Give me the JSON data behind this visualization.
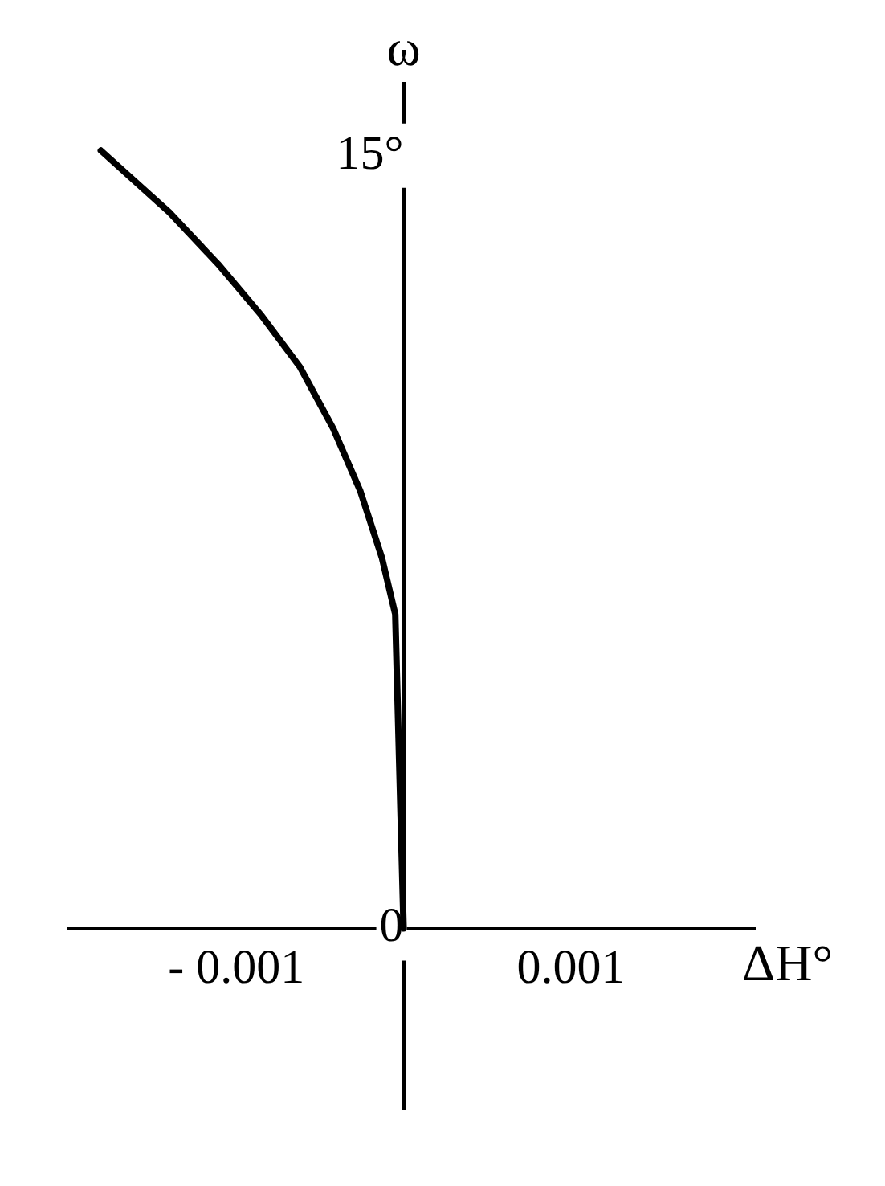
{
  "chart_data": {
    "type": "line",
    "xlabel": "ΔH°",
    "ylabel": "ω",
    "x": [
      -0.00181,
      -0.0014,
      -0.00111,
      -0.00085,
      -0.00062,
      -0.00042,
      -0.00026,
      -0.00013,
      -5e-05,
      0
    ],
    "series": [
      {
        "color": "#000000",
        "values": [
          15.1,
          13.9,
          12.9,
          11.9,
          10.9,
          9.7,
          8.5,
          7.2,
          6.1,
          0
        ]
      }
    ],
    "xlim": [
      -0.002,
      0.0021
    ],
    "ylim": [
      -3.5,
      16.4
    ],
    "xticks": [
      {
        "value": -0.001,
        "label": "- 0.001"
      },
      {
        "value": 0.001,
        "label": "0.001"
      }
    ],
    "yticks": [
      {
        "value": 0,
        "label": "0"
      },
      {
        "value": 15,
        "label": "15°"
      }
    ],
    "grid": false,
    "legend": false,
    "marker": "none",
    "line_style": "solid"
  }
}
